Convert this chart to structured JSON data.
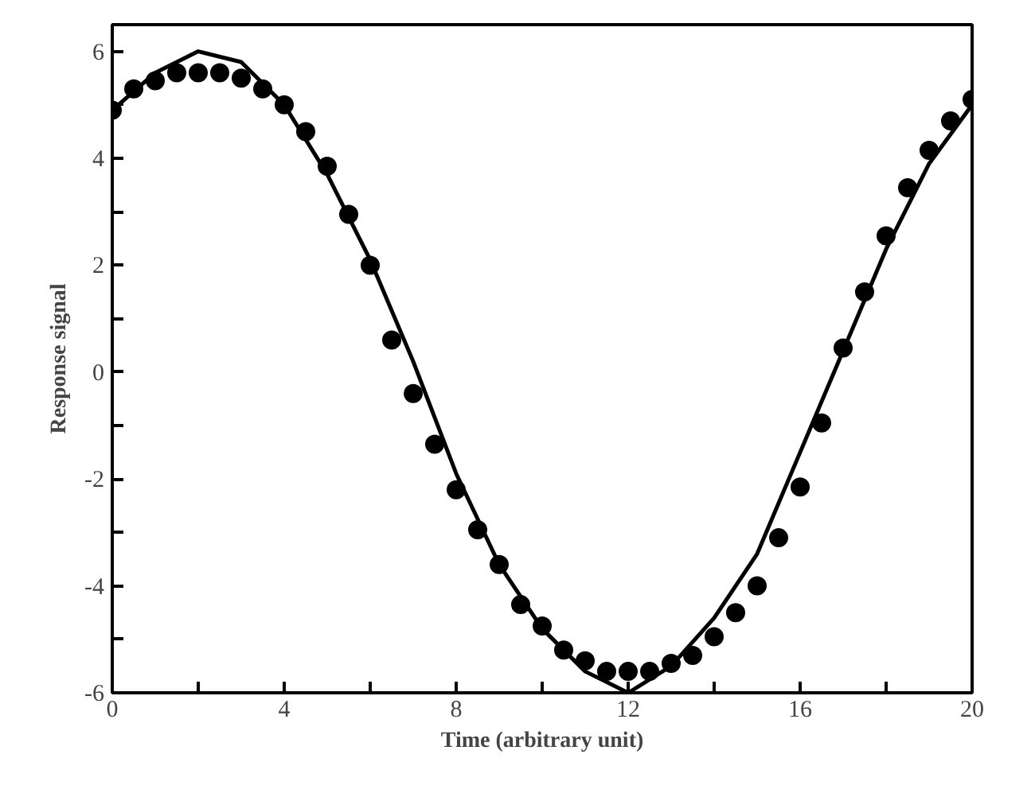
{
  "chart_data": {
    "type": "scatter",
    "xlabel": "Time (arbitrary unit)",
    "ylabel": "Response signal",
    "xlim": [
      0,
      20
    ],
    "ylim": [
      -6,
      6.5
    ],
    "xticks": [
      0,
      {
        "value": 2,
        "label": null
      },
      4,
      {
        "value": 6,
        "label": null
      },
      8,
      {
        "value": 10,
        "label": null
      },
      12,
      {
        "value": 14,
        "label": null
      },
      16,
      {
        "value": 18,
        "label": null
      },
      20
    ],
    "yticks": [
      -6,
      {
        "value": -5,
        "label": null
      },
      -4,
      {
        "value": -3,
        "label": null
      },
      -2,
      {
        "value": -1,
        "label": null
      },
      0,
      {
        "value": 1,
        "label": null
      },
      2,
      {
        "value": 3,
        "label": null
      },
      4,
      {
        "value": 5,
        "label": null
      },
      6
    ],
    "grid": false,
    "series": [
      {
        "marker": "circle",
        "color": "#000000",
        "x": [
          0,
          0.5,
          1,
          1.5,
          2,
          2.5,
          3,
          3.5,
          4,
          4.5,
          5,
          5.5,
          6,
          6.5,
          7,
          7.5,
          8,
          8.5,
          9,
          9.5,
          10,
          10.5,
          11,
          11.5,
          12,
          12.5,
          13,
          13.5,
          14,
          14.5,
          15,
          15.5,
          16,
          16.5,
          17,
          17.5,
          18,
          18.5,
          19,
          19.5,
          20
        ],
        "values": [
          4.9,
          5.3,
          5.45,
          5.6,
          5.6,
          5.6,
          5.5,
          5.3,
          5.0,
          4.5,
          3.85,
          2.95,
          2.0,
          0.6,
          -0.4,
          -1.35,
          -2.2,
          -2.95,
          -3.6,
          -4.35,
          -4.75,
          -5.2,
          -5.4,
          -5.6,
          -5.6,
          -5.6,
          -5.45,
          -5.3,
          -4.95,
          -4.5,
          -4.0,
          -3.1,
          -2.15,
          -0.95,
          0.45,
          1.5,
          2.55,
          3.45,
          4.15,
          4.7,
          5.1
        ]
      },
      {
        "type": "line",
        "color": "#000000",
        "line_style": "solid",
        "x": [
          0,
          1,
          2,
          3,
          4,
          5,
          6,
          7,
          8,
          9,
          10,
          11,
          12,
          13,
          14,
          15,
          16,
          17,
          18,
          19,
          20
        ],
        "values": [
          4.9,
          5.6,
          6.0,
          5.8,
          5.0,
          3.7,
          2.1,
          0.2,
          -1.9,
          -3.6,
          -4.8,
          -5.6,
          -6.0,
          -5.5,
          -4.6,
          -3.4,
          -1.5,
          0.4,
          2.3,
          3.9,
          5.0
        ]
      }
    ]
  }
}
